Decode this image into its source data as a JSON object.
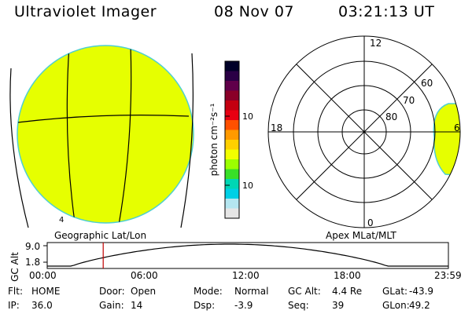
{
  "header": {
    "title": "Ultraviolet Imager",
    "date": "08 Nov 07",
    "time": "03:21:13 UT"
  },
  "colors": {
    "aurora_fill": "#e6ff00",
    "limb": "#4fcfd0",
    "marker": "#c00000"
  },
  "geo_panel": {
    "label": "Geographic Lat/Lon",
    "corner_mark": "4"
  },
  "colorbar": {
    "label": "photon cm⁻²s⁻¹",
    "ticks": [
      {
        "text": "100",
        "value": 100
      },
      {
        "text": "10",
        "value": 10
      }
    ],
    "colors": [
      "#000028",
      "#2a0045",
      "#60004a",
      "#8a0028",
      "#c40010",
      "#e80012",
      "#ff5000",
      "#ff9a00",
      "#ffd000",
      "#f2ff00",
      "#9cff00",
      "#38e028",
      "#00d7b4",
      "#00d0e6",
      "#b4e6f0",
      "#e6e6e6"
    ]
  },
  "polar_panel": {
    "label": "Apex MLat/MLT",
    "mlt_labels": {
      "top": "12",
      "left": "18",
      "right": "6",
      "bottom": "0"
    },
    "lat_labels": [
      "60",
      "70",
      "80"
    ]
  },
  "gc_plot": {
    "axis_label": "GC Alt",
    "y_ticks": [
      "9.0",
      "1.8"
    ],
    "x_ticks": [
      "00:00",
      "06:00",
      "12:00",
      "18:00",
      "23:59"
    ],
    "marker_time_hours": 3.35
  },
  "info": {
    "row1": [
      {
        "label": "Flt:",
        "value": "HOME"
      },
      {
        "label": "Door:",
        "value": "Open"
      },
      {
        "label": "Mode:",
        "value": "Normal"
      },
      {
        "label": "GC Alt:",
        "value": "4.4 Re"
      },
      {
        "label": "GLat:",
        "value": "-43.9"
      }
    ],
    "row2": [
      {
        "label": "IP:",
        "value": "36.0"
      },
      {
        "label": "Gain:",
        "value": "14"
      },
      {
        "label": "Dsp:",
        "value": "-3.9"
      },
      {
        "label": "Seq:",
        "value": "39"
      },
      {
        "label": "GLon:",
        "value": "49.2"
      }
    ]
  }
}
